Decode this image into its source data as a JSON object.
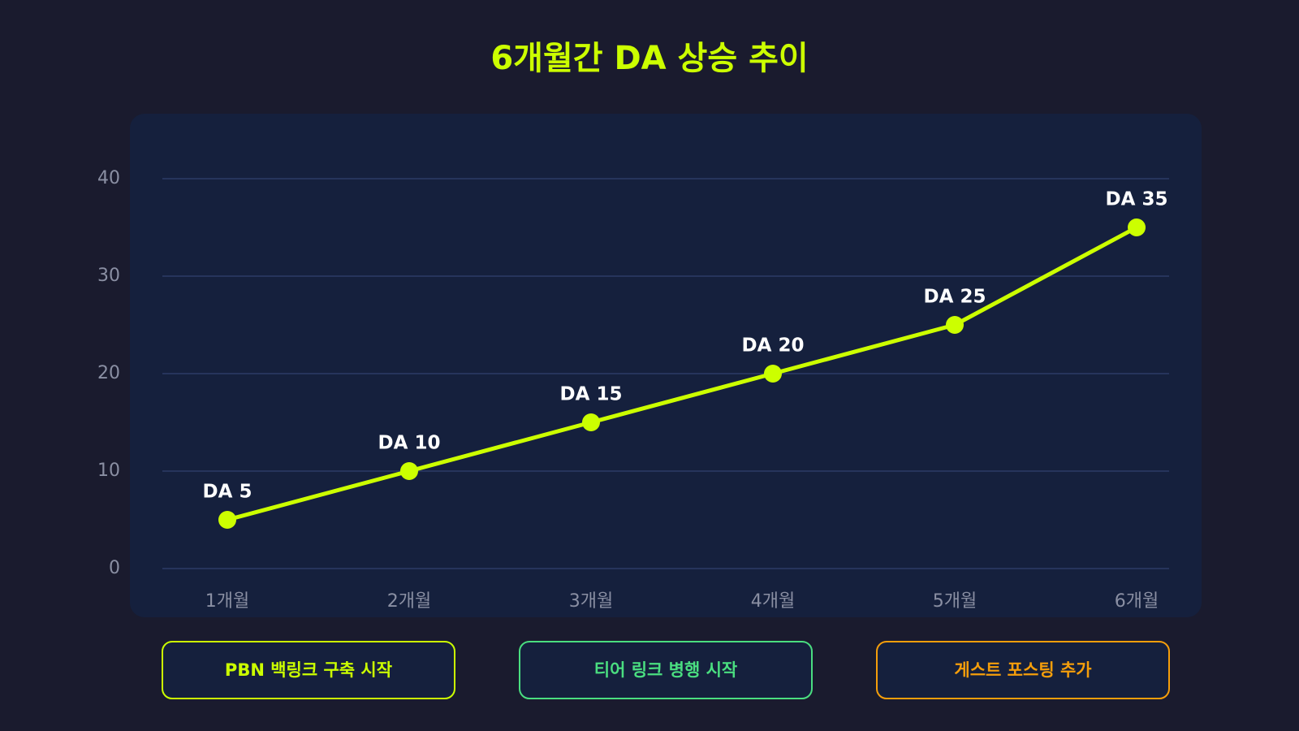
{
  "chart_data": {
    "type": "line",
    "title": "6개월간 DA 상승 추이",
    "categories": [
      "1개월",
      "2개월",
      "3개월",
      "4개월",
      "5개월",
      "6개월"
    ],
    "values": [
      5,
      10,
      15,
      20,
      25,
      35
    ],
    "value_labels": [
      "DA 5",
      "DA 10",
      "DA 15",
      "DA 20",
      "DA 25",
      "DA 35"
    ],
    "color": "#ccff00",
    "ylim": [
      0,
      40
    ],
    "yticks": [
      0,
      10,
      20,
      30,
      40
    ],
    "grid": true,
    "annotations": [
      {
        "text": "PBN 백링크 구축 시작",
        "color": "#ccff00"
      },
      {
        "text": "티어 링크 병행 시작",
        "color": "#4ade80"
      },
      {
        "text": "게스트 포스팅 추가",
        "color": "#f59e0b"
      }
    ]
  }
}
